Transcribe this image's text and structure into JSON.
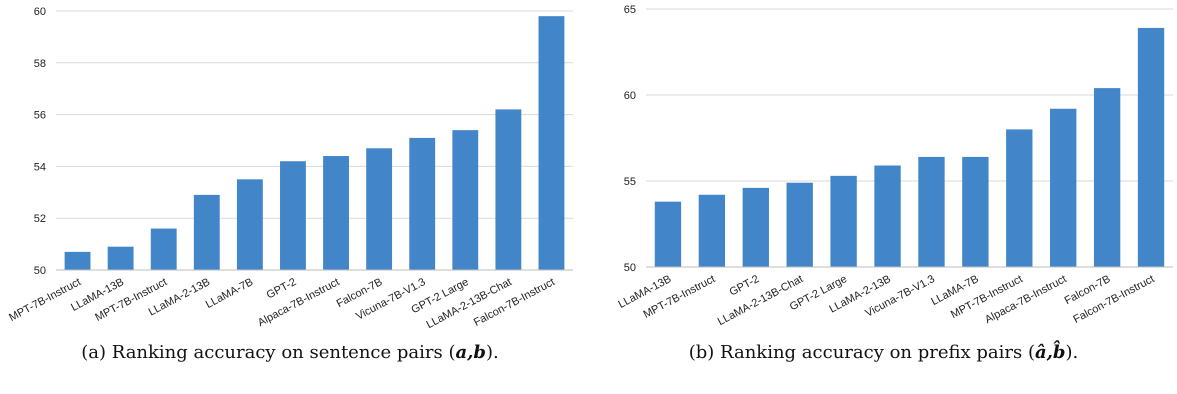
{
  "chart_data": [
    {
      "type": "bar",
      "categories": [
        "MPT-7B-Instruct",
        "LLaMA-13B",
        "MPT-7B-Instruct",
        "LLaMA-2-13B",
        "LLaMA-7B",
        "GPT-2",
        "Alpaca-7B-Instruct",
        "Falcon-7B",
        "Vicuna-7B-V1.3",
        "GPT-2 Large",
        "LLaMA-2-13B-Chat",
        "Falcon-7B-Instruct"
      ],
      "values": [
        50.7,
        50.9,
        51.6,
        52.9,
        53.5,
        54.2,
        54.4,
        54.7,
        55.1,
        55.4,
        56.2,
        59.8
      ],
      "ylim": [
        50,
        60
      ],
      "yticks": [
        50,
        52,
        54,
        56,
        58,
        60
      ],
      "grid": true,
      "bar_color": "#4285c8",
      "caption": {
        "prefix": "(a) Ranking accuracy on sentence pairs (",
        "math": "a,b",
        "suffix": ")."
      }
    },
    {
      "type": "bar",
      "categories": [
        "LLaMA-13B",
        "MPT-7B-Instruct",
        "GPT-2",
        "LLaMA-2-13B-Chat",
        "GPT-2 Large",
        "LLaMA-2-13B",
        "Vicuna-7B-V1.3",
        "LLaMA-7B",
        "MPT-7B-Instruct",
        "Alpaca-7B-Instruct",
        "Falcon-7B",
        "Falcon-7B-Instruct"
      ],
      "values": [
        53.8,
        54.2,
        54.6,
        54.9,
        55.3,
        55.9,
        56.4,
        56.4,
        58.0,
        59.2,
        60.4,
        63.9
      ],
      "ylim": [
        50,
        65
      ],
      "yticks": [
        50,
        55,
        60,
        65
      ],
      "grid": true,
      "bar_color": "#4285c8",
      "caption": {
        "prefix": "(b) Ranking accuracy on prefix pairs (",
        "math": "â,b̂",
        "suffix": ")."
      }
    }
  ]
}
